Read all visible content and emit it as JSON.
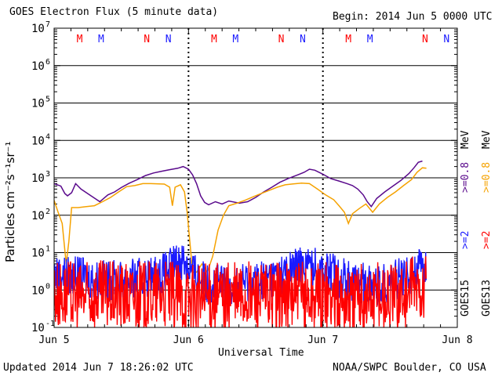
{
  "header": {
    "title": "GOES Electron Flux (5 minute data)",
    "begin": "Begin: 2014 Jun 5 0000 UTC"
  },
  "footer": {
    "updated": "Updated 2014 Jun  7 18:26:02 UTC",
    "credit": "NOAA/SWPC Boulder, CO USA"
  },
  "right_labels": {
    "goes15": "GOES15",
    "goes13": "GOES13",
    "g15_ge2": ">=2",
    "g13_ge2": ">=2",
    "g15_ge08": ">=0.8",
    "g13_ge08": ">=0.8",
    "mev_1": "MeV",
    "mev_2": "MeV"
  },
  "colors": {
    "goes15_ge2": "#1a1aff",
    "goes13_ge2": "#ff0000",
    "goes15_ge08": "#5a0a8c",
    "goes13_ge08": "#f5a200",
    "goes15_label": "#1a1aff",
    "goes13_label": "#ff0000"
  },
  "chart_data": {
    "type": "line",
    "title": "GOES Electron Flux (5 minute data)",
    "xlabel": "Universal Time",
    "ylabel": "Particles cm⁻²s⁻¹sr⁻¹",
    "yscale": "log",
    "ylim": [
      0.1,
      10000000
    ],
    "xlim": [
      0,
      3
    ],
    "x_units": "days since 2014 Jun 5 0000 UTC",
    "x_ticks": [
      {
        "x": 0,
        "label": "Jun 5"
      },
      {
        "x": 1,
        "label": "Jun 6"
      },
      {
        "x": 2,
        "label": "Jun 7"
      },
      {
        "x": 3,
        "label": "Jun 8"
      }
    ],
    "y_ticks": [
      {
        "exp": -1,
        "base": "10",
        "power": "-1"
      },
      {
        "exp": 0,
        "base": "10",
        "power": "0"
      },
      {
        "exp": 1,
        "base": "10",
        "power": "1"
      },
      {
        "exp": 2,
        "base": "10",
        "power": "2"
      },
      {
        "exp": 3,
        "base": "10",
        "power": "3"
      },
      {
        "exp": 4,
        "base": "10",
        "power": "4"
      },
      {
        "exp": 5,
        "base": "10",
        "power": "5"
      },
      {
        "exp": 6,
        "base": "10",
        "power": "6"
      },
      {
        "exp": 7,
        "base": "10",
        "power": "7"
      }
    ],
    "alert_threshold": 1000,
    "midnight_markers": [
      1,
      2
    ],
    "mn_markers": [
      {
        "x": 0.19,
        "label": "M",
        "satellite": "GOES13"
      },
      {
        "x": 0.35,
        "label": "M",
        "satellite": "GOES15"
      },
      {
        "x": 0.69,
        "label": "N",
        "satellite": "GOES13"
      },
      {
        "x": 0.85,
        "label": "N",
        "satellite": "GOES15"
      },
      {
        "x": 1.19,
        "label": "M",
        "satellite": "GOES13"
      },
      {
        "x": 1.35,
        "label": "M",
        "satellite": "GOES15"
      },
      {
        "x": 1.69,
        "label": "N",
        "satellite": "GOES13"
      },
      {
        "x": 1.85,
        "label": "N",
        "satellite": "GOES15"
      },
      {
        "x": 2.19,
        "label": "M",
        "satellite": "GOES13"
      },
      {
        "x": 2.35,
        "label": "M",
        "satellite": "GOES15"
      },
      {
        "x": 2.76,
        "label": "N",
        "satellite": "GOES13"
      },
      {
        "x": 2.92,
        "label": "N",
        "satellite": "GOES15"
      }
    ],
    "series": [
      {
        "name": "GOES15 >=0.8 MeV",
        "color": "#5a0a8c",
        "points": [
          [
            0.0,
            700
          ],
          [
            0.05,
            600
          ],
          [
            0.08,
            380
          ],
          [
            0.1,
            330
          ],
          [
            0.13,
            400
          ],
          [
            0.16,
            700
          ],
          [
            0.2,
            500
          ],
          [
            0.28,
            320
          ],
          [
            0.34,
            230
          ],
          [
            0.4,
            350
          ],
          [
            0.45,
            420
          ],
          [
            0.5,
            550
          ],
          [
            0.56,
            720
          ],
          [
            0.62,
            900
          ],
          [
            0.68,
            1150
          ],
          [
            0.74,
            1350
          ],
          [
            0.8,
            1500
          ],
          [
            0.86,
            1650
          ],
          [
            0.92,
            1800
          ],
          [
            0.96,
            2000
          ],
          [
            1.0,
            1700
          ],
          [
            1.03,
            1200
          ],
          [
            1.06,
            700
          ],
          [
            1.09,
            330
          ],
          [
            1.12,
            220
          ],
          [
            1.15,
            190
          ],
          [
            1.2,
            230
          ],
          [
            1.25,
            200
          ],
          [
            1.3,
            240
          ],
          [
            1.38,
            210
          ],
          [
            1.44,
            230
          ],
          [
            1.5,
            300
          ],
          [
            1.56,
            420
          ],
          [
            1.62,
            560
          ],
          [
            1.68,
            760
          ],
          [
            1.74,
            950
          ],
          [
            1.8,
            1150
          ],
          [
            1.86,
            1400
          ],
          [
            1.9,
            1700
          ],
          [
            1.94,
            1600
          ],
          [
            2.0,
            1250
          ],
          [
            2.06,
            950
          ],
          [
            2.12,
            820
          ],
          [
            2.18,
            700
          ],
          [
            2.22,
            620
          ],
          [
            2.26,
            500
          ],
          [
            2.3,
            350
          ],
          [
            2.33,
            230
          ],
          [
            2.36,
            170
          ],
          [
            2.4,
            280
          ],
          [
            2.46,
            420
          ],
          [
            2.52,
            600
          ],
          [
            2.58,
            850
          ],
          [
            2.64,
            1300
          ],
          [
            2.68,
            1900
          ],
          [
            2.71,
            2600
          ],
          [
            2.74,
            2800
          ]
        ]
      },
      {
        "name": "GOES13 >=0.8 MeV",
        "color": "#f5a200",
        "points": [
          [
            0.0,
            250
          ],
          [
            0.03,
            120
          ],
          [
            0.06,
            60
          ],
          [
            0.09,
            5
          ],
          [
            0.11,
            20
          ],
          [
            0.13,
            160
          ],
          [
            0.18,
            160
          ],
          [
            0.24,
            170
          ],
          [
            0.3,
            180
          ],
          [
            0.36,
            230
          ],
          [
            0.42,
            300
          ],
          [
            0.48,
            420
          ],
          [
            0.54,
            580
          ],
          [
            0.6,
            620
          ],
          [
            0.66,
            700
          ],
          [
            0.72,
            700
          ],
          [
            0.78,
            690
          ],
          [
            0.82,
            680
          ],
          [
            0.86,
            560
          ],
          [
            0.88,
            180
          ],
          [
            0.9,
            560
          ],
          [
            0.94,
            650
          ],
          [
            0.97,
            420
          ],
          [
            0.99,
            120
          ],
          [
            1.01,
            20
          ],
          [
            1.03,
            3
          ],
          [
            1.06,
            3
          ],
          [
            1.1,
            5
          ],
          [
            1.14,
            3
          ],
          [
            1.18,
            8
          ],
          [
            1.22,
            40
          ],
          [
            1.26,
            100
          ],
          [
            1.3,
            180
          ],
          [
            1.36,
            210
          ],
          [
            1.42,
            250
          ],
          [
            1.48,
            310
          ],
          [
            1.54,
            380
          ],
          [
            1.6,
            460
          ],
          [
            1.66,
            560
          ],
          [
            1.72,
            650
          ],
          [
            1.78,
            690
          ],
          [
            1.84,
            720
          ],
          [
            1.9,
            700
          ],
          [
            1.96,
            500
          ],
          [
            2.02,
            350
          ],
          [
            2.08,
            260
          ],
          [
            2.12,
            180
          ],
          [
            2.16,
            120
          ],
          [
            2.19,
            60
          ],
          [
            2.22,
            110
          ],
          [
            2.27,
            150
          ],
          [
            2.32,
            200
          ],
          [
            2.37,
            120
          ],
          [
            2.42,
            200
          ],
          [
            2.48,
            300
          ],
          [
            2.54,
            420
          ],
          [
            2.6,
            620
          ],
          [
            2.66,
            900
          ],
          [
            2.7,
            1400
          ],
          [
            2.74,
            1850
          ],
          [
            2.77,
            1800
          ]
        ]
      },
      {
        "name": "GOES15 >=2 MeV",
        "color": "#1a1aff",
        "points": [
          [
            0.0,
            3
          ],
          [
            0.2,
            2.5
          ],
          [
            0.4,
            2
          ],
          [
            0.6,
            2.2
          ],
          [
            0.8,
            3
          ],
          [
            0.96,
            8
          ],
          [
            1.02,
            4
          ],
          [
            1.1,
            2
          ],
          [
            1.3,
            1.5
          ],
          [
            1.5,
            2
          ],
          [
            1.7,
            3
          ],
          [
            1.86,
            6
          ],
          [
            2.0,
            4
          ],
          [
            2.2,
            2
          ],
          [
            2.4,
            1.5
          ],
          [
            2.6,
            2.5
          ],
          [
            2.77,
            5
          ]
        ]
      },
      {
        "name": "GOES13 >=2 MeV",
        "color": "#ff0000",
        "points": [
          [
            0.0,
            1
          ],
          [
            0.2,
            0.8
          ],
          [
            0.4,
            0.9
          ],
          [
            0.6,
            0.8
          ],
          [
            0.8,
            1
          ],
          [
            1.0,
            0.7
          ],
          [
            1.2,
            0.8
          ],
          [
            1.4,
            0.9
          ],
          [
            1.6,
            0.8
          ],
          [
            1.8,
            0.9
          ],
          [
            2.0,
            0.8
          ],
          [
            2.2,
            0.7
          ],
          [
            2.4,
            0.8
          ],
          [
            2.6,
            1
          ],
          [
            2.77,
            1.5
          ]
        ]
      }
    ]
  }
}
